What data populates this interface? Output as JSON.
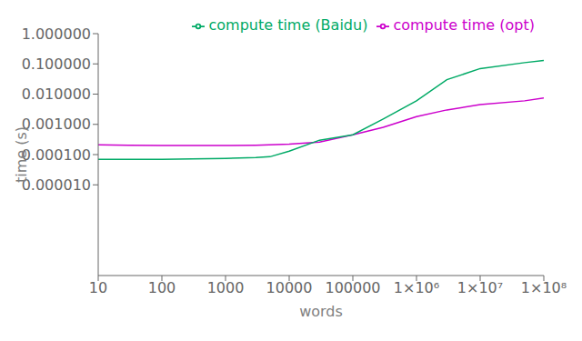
{
  "chart_data": {
    "type": "line",
    "xlabel": "words",
    "ylabel": "time (s)",
    "log": true,
    "grid": false,
    "legend": "upper right",
    "xlim": [
      10,
      100000000
    ],
    "ylim": [
      1e-08,
      1.0
    ],
    "xticks": [
      10,
      100,
      1000,
      10000,
      100000,
      {
        "value": 1000000,
        "label": "1×10⁶"
      },
      {
        "value": 10000000,
        "label": "1×10⁷"
      },
      {
        "value": 100000000,
        "label": "1×10⁸"
      }
    ],
    "yticks": [
      {
        "value": 1e-05,
        "label": "0.000010"
      },
      {
        "value": 0.0001,
        "label": "0.000100"
      },
      {
        "value": 0.001,
        "label": "0.001000"
      },
      {
        "value": 0.01,
        "label": "0.010000"
      },
      {
        "value": 0.1,
        "label": "0.100000"
      },
      {
        "value": 1.0,
        "label": "1.000000"
      }
    ],
    "series": [
      {
        "name": "compute time (opt)",
        "color": "#cc00cc",
        "x": [
          10,
          30,
          100,
          300,
          1000,
          3000,
          10000,
          30000,
          100000,
          300000,
          1000000,
          3000000,
          10000000,
          50000000,
          100000000
        ],
        "values": [
          0.00021,
          0.000205,
          0.0002,
          0.0002,
          0.0002,
          0.000205,
          0.00022,
          0.00026,
          0.00045,
          0.0008,
          0.0018,
          0.003,
          0.0045,
          0.006,
          0.0075
        ]
      },
      {
        "name": "compute time (Baidu)",
        "color": "#00aa66",
        "x": [
          10,
          30,
          100,
          300,
          1000,
          3000,
          5000,
          10000,
          30000,
          100000,
          300000,
          1000000,
          3000000,
          10000000,
          50000000,
          100000000
        ],
        "values": [
          7e-05,
          7e-05,
          7e-05,
          7.2e-05,
          7.5e-05,
          8e-05,
          8.5e-05,
          0.00013,
          0.0003,
          0.00045,
          0.0015,
          0.006,
          0.03,
          0.07,
          0.11,
          0.13
        ]
      }
    ]
  }
}
